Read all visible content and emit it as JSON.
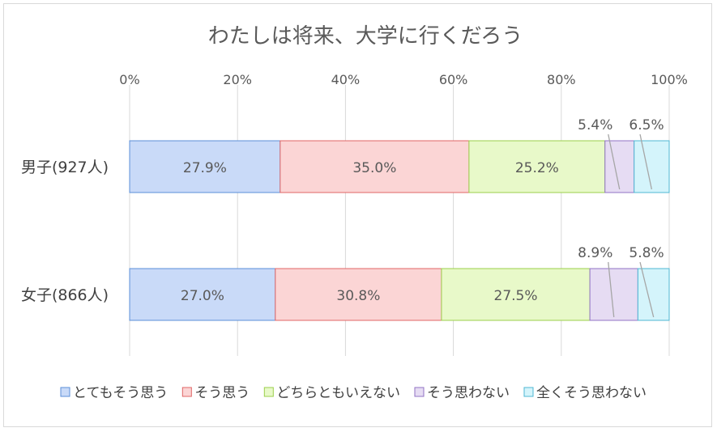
{
  "chart_data": {
    "type": "bar",
    "orientation": "horizontal",
    "stacked": "percent",
    "title": "わたしは将来、大学に行くだろう",
    "xlabel": "",
    "ylabel": "",
    "xlim": [
      0,
      100
    ],
    "x_ticks": [
      "0%",
      "20%",
      "40%",
      "60%",
      "80%",
      "100%"
    ],
    "grid": true,
    "legend_position": "bottom",
    "categories": [
      "男子(927人)",
      "女子(866人)"
    ],
    "series": [
      {
        "name": "とてもそう思う",
        "values": [
          27.9,
          27.0
        ],
        "labels": [
          "27.9%",
          "27.0%"
        ],
        "color": "#c9daf8",
        "stroke": "#5b8fd8"
      },
      {
        "name": "そう思う",
        "values": [
          35.0,
          30.8
        ],
        "labels": [
          "35.0%",
          "30.8%"
        ],
        "color": "#fbd5d5",
        "stroke": "#e06666"
      },
      {
        "name": "どちらともいえない",
        "values": [
          25.2,
          27.5
        ],
        "labels": [
          "25.2%",
          "27.5%"
        ],
        "color": "#e8f9c9",
        "stroke": "#9bcf4b"
      },
      {
        "name": "そう思わない",
        "values": [
          5.4,
          8.9
        ],
        "labels": [
          "5.4%",
          "8.9%"
        ],
        "color": "#e6dcf3",
        "stroke": "#9173c4"
      },
      {
        "name": "全くそう思わない",
        "values": [
          6.5,
          5.8
        ],
        "labels": [
          "6.5%",
          "5.8%"
        ],
        "color": "#d4f4fb",
        "stroke": "#4fb7d3"
      }
    ]
  }
}
